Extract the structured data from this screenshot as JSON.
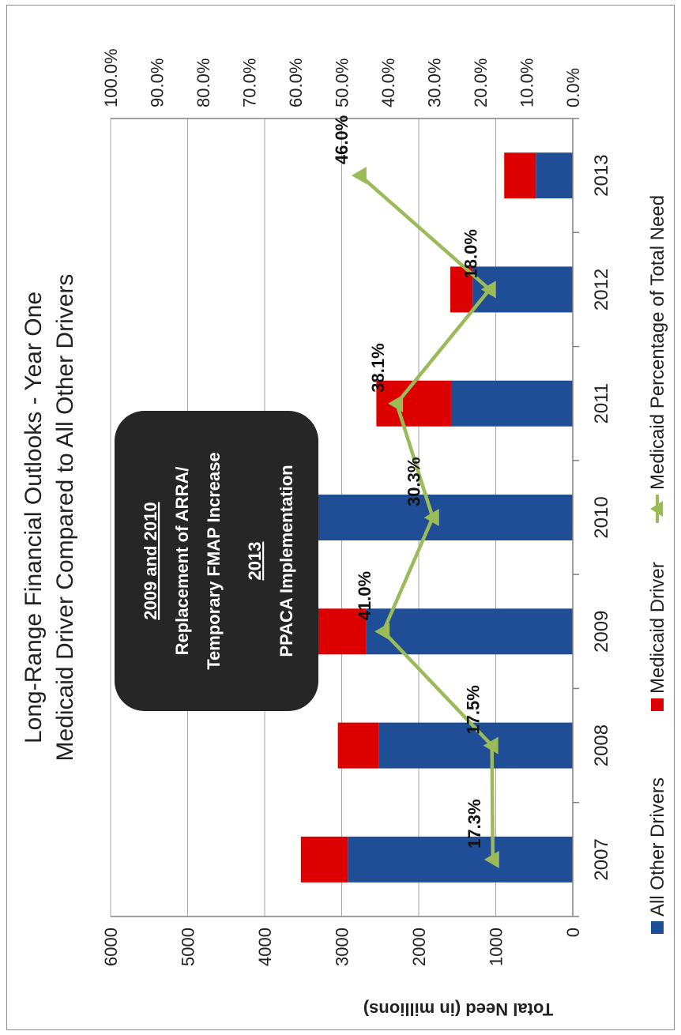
{
  "chart_data": {
    "type": "bar",
    "stacked": true,
    "title_lines": [
      "Long-Range Financial Outlooks - Year One",
      "Medicaid Driver Compared to All Other Drivers"
    ],
    "ylabel": "Total Need (in millions)",
    "ylim": [
      0,
      6000
    ],
    "y_ticks": [
      "0",
      "1000",
      "2000",
      "3000",
      "4000",
      "5000",
      "6000"
    ],
    "y2lim": [
      0,
      100
    ],
    "y2_ticks": [
      "0.0%",
      "10.0%",
      "20.0%",
      "30.0%",
      "40.0%",
      "50.0%",
      "60.0%",
      "70.0%",
      "80.0%",
      "90.0%",
      "100.0%"
    ],
    "categories": [
      "2007",
      "2008",
      "2009",
      "2010",
      "2011",
      "2012",
      "2013"
    ],
    "series": [
      {
        "name": "All Other Drivers",
        "type": "bar",
        "axis": "left",
        "color": "#1f4e96",
        "values": [
          2920,
          2520,
          2680,
          3400,
          1580,
          1300,
          480
        ]
      },
      {
        "name": "Medicaid Driver",
        "type": "bar",
        "axis": "left",
        "color": "#dd0000",
        "values": [
          610,
          530,
          1860,
          1480,
          970,
          290,
          410
        ]
      },
      {
        "name": "Medicaid Percentage of Total Need",
        "type": "line",
        "axis": "right",
        "color": "#9bbb59",
        "values": [
          17.3,
          17.5,
          41.0,
          30.3,
          38.1,
          18.0,
          46.0
        ],
        "labels": [
          "17.3%",
          "17.5%",
          "41.0%",
          "30.3%",
          "38.1%",
          "18.0%",
          "46.0%"
        ]
      }
    ],
    "legend_position": "bottom",
    "grid": true,
    "annotation": {
      "line1": "2009 and 2010",
      "line2": "Replacement of ARRA/",
      "line3": "Temporary FMAP Increase",
      "line4": "2013",
      "line5": "PPACA Implementation"
    }
  }
}
